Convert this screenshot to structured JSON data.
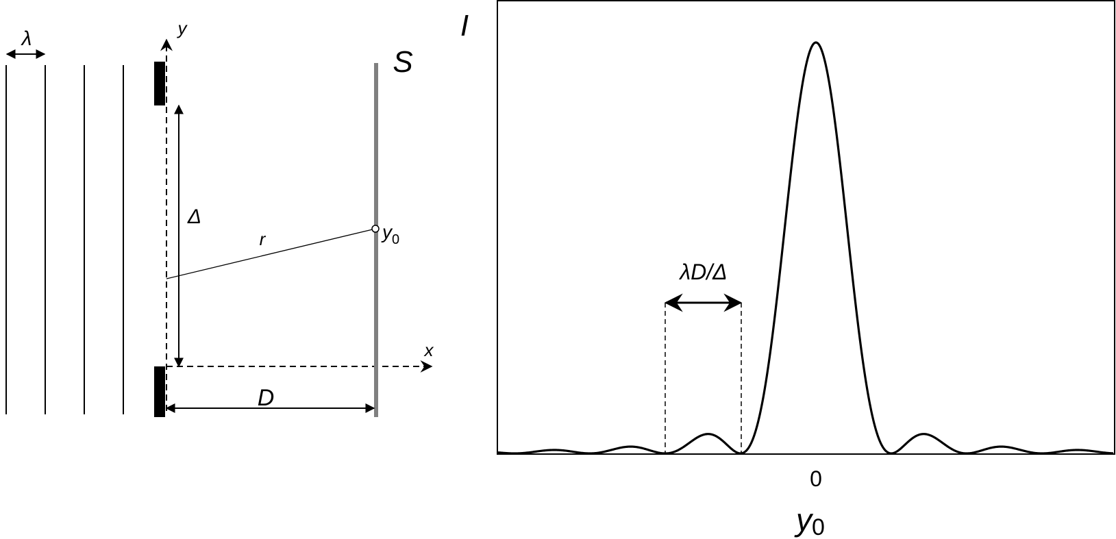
{
  "slit_diagram": {
    "wavelength_label": "λ",
    "y_axis_label": "y",
    "x_axis_label": "x",
    "screen_label": "S",
    "slit_separation_label": "Δ",
    "distance_label": "D",
    "path_label": "r",
    "point_label": "y",
    "point_subscript": "0"
  },
  "intensity_plot": {
    "y_axis_label": "I",
    "x_axis_label": "y",
    "x_axis_subscript": "0",
    "origin_tick": "0",
    "fringe_spacing_label": "λD/Δ"
  },
  "colors": {
    "ink": "#000000",
    "screen": "#808080",
    "background": "#ffffff"
  }
}
